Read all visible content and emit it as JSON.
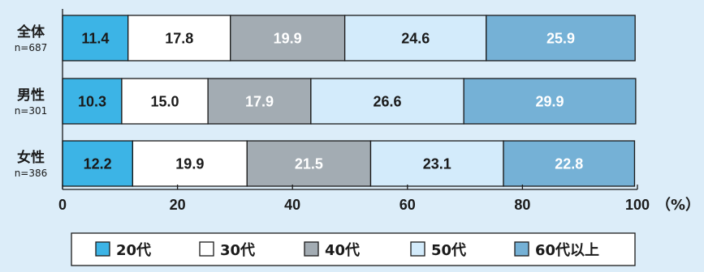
{
  "chart_data": {
    "type": "bar",
    "orientation": "horizontal",
    "stacked": true,
    "title": "",
    "xlabel": "",
    "ylabel": "",
    "unit": "（%）",
    "xlim": [
      0,
      100
    ],
    "xticks": [
      0,
      20,
      40,
      60,
      80,
      100
    ],
    "grid": false,
    "legend_position": "bottom",
    "categories": [
      {
        "label": "全体",
        "sublabel": "n=687"
      },
      {
        "label": "男性",
        "sublabel": "n=301"
      },
      {
        "label": "女性",
        "sublabel": "n=386"
      }
    ],
    "series": [
      {
        "name": "20代",
        "color": "#3cb4e6",
        "text_color": "#1a1a1a",
        "values": [
          11.4,
          10.3,
          12.2
        ]
      },
      {
        "name": "30代",
        "color": "#ffffff",
        "text_color": "#1a1a1a",
        "values": [
          17.8,
          15.0,
          19.9
        ]
      },
      {
        "name": "40代",
        "color": "#a3acb3",
        "text_color": "#ffffff",
        "values": [
          19.9,
          17.9,
          21.5
        ]
      },
      {
        "name": "50代",
        "color": "#d3ebfb",
        "text_color": "#1a1a1a",
        "values": [
          24.6,
          26.6,
          23.1
        ]
      },
      {
        "name": "60代以上",
        "color": "#75b1d6",
        "text_color": "#ffffff",
        "values": [
          25.9,
          29.9,
          22.8
        ]
      }
    ]
  }
}
